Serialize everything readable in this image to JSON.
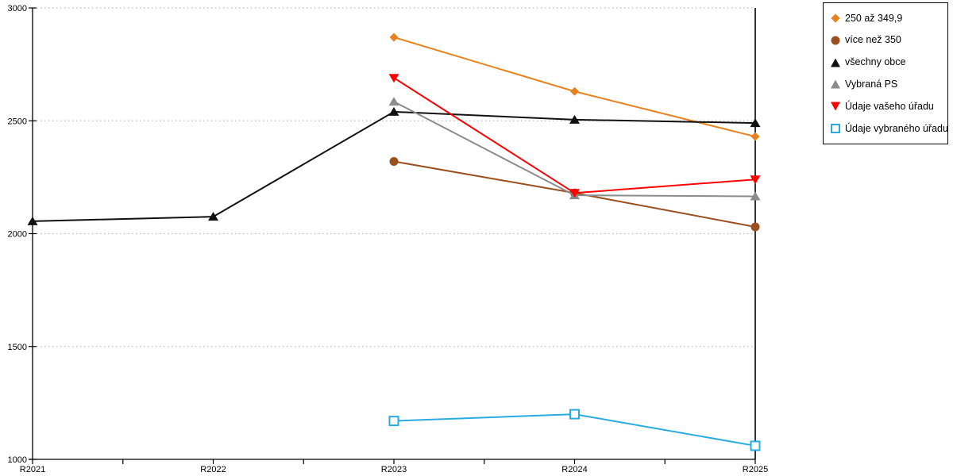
{
  "chart_data": {
    "type": "line",
    "title": "",
    "xlabel": "",
    "ylabel": "",
    "categories": [
      "R2021",
      "R2022",
      "R2023",
      "R2024",
      "R2025"
    ],
    "series": [
      {
        "name": "250 až 349,9",
        "color": "#E8821F",
        "marker": "diamond",
        "values": [
          null,
          null,
          2870,
          2630,
          2430
        ]
      },
      {
        "name": "více než 350",
        "color": "#9A4F1E",
        "marker": "circle",
        "values": [
          null,
          null,
          2320,
          2180,
          2030
        ]
      },
      {
        "name": "všechny obce",
        "color": "#111111",
        "marker": "triangle-up",
        "values": [
          2055,
          2075,
          2540,
          2505,
          2490
        ]
      },
      {
        "name": "Vybraná PS",
        "color": "#8C8C8C",
        "marker": "triangle-up",
        "values": [
          null,
          null,
          2585,
          2170,
          2165
        ]
      },
      {
        "name": "Údaje vašeho úřadu",
        "color": "#FF0000",
        "marker": "triangle-down",
        "values": [
          null,
          null,
          2690,
          2180,
          2240
        ]
      },
      {
        "name": "Údaje vybraného úřadu",
        "color": "#29ABE2",
        "marker": "square-open",
        "values": [
          null,
          null,
          1170,
          1200,
          1060
        ]
      }
    ],
    "ylim": [
      1000,
      3000
    ],
    "ytick_step": 500,
    "yticks": [
      "1000",
      "1500",
      "2000",
      "2500",
      "3000"
    ],
    "grid": "horizontal dotted gridlines at 1500/2000/2500/3000",
    "grid_color": "#BBBBBB",
    "axis_color": "#000000",
    "legend_position": "top-right",
    "minor_x_ticks": "midpoints between year ticks"
  }
}
